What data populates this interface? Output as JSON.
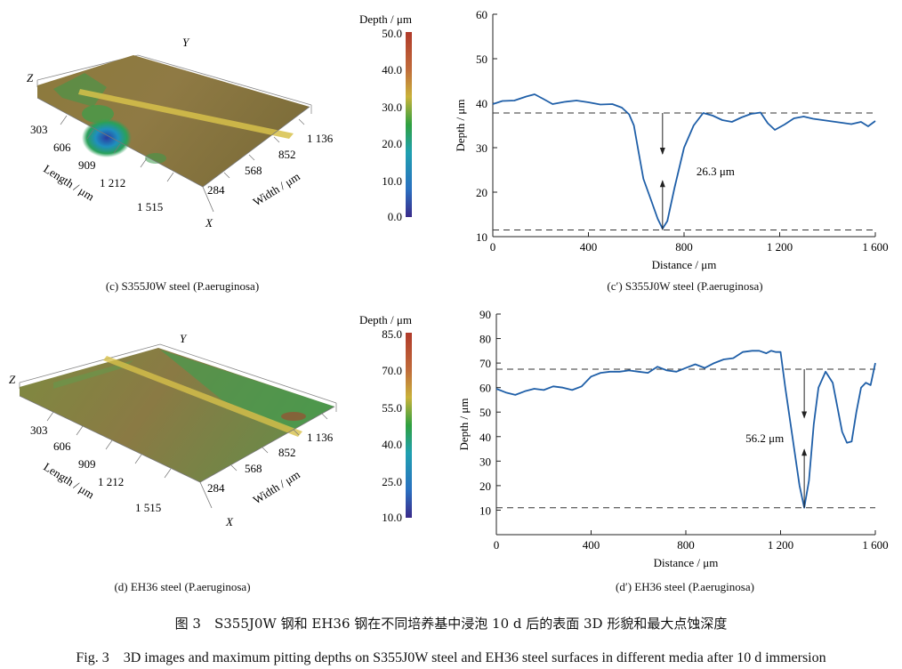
{
  "figure": {
    "caption_cn": "图 3　S355J0W 钢和 EH36 钢在不同培养基中浸泡 10 d 后的表面 3D 形貌和最大点蚀深度",
    "caption_en": "Fig. 3　3D images and maximum pitting depths on S355J0W steel and EH36 steel surfaces in different media after 10 d immersion"
  },
  "panels": {
    "c": {
      "caption": "(c) S355J0W steel (P.aeruginosa)",
      "axis_z": "Z",
      "axis_y": "Y",
      "axis_x": "X",
      "length_label": "Length / μm",
      "width_label": "Width / μm",
      "length_ticks": [
        "303",
        "606",
        "909",
        "1 212",
        "1 515"
      ],
      "width_ticks": [
        "284",
        "568",
        "852",
        "1 136"
      ],
      "colorbar_title": "Depth / μm",
      "colorbar_ticks": [
        "50.0",
        "40.0",
        "30.0",
        "20.0",
        "10.0",
        "0.0"
      ]
    },
    "d": {
      "caption": "(d) EH36 steel (P.aeruginosa)",
      "axis_z": "Z",
      "axis_y": "Y",
      "axis_x": "X",
      "length_label": "Length / μm",
      "width_label": "Width / μm",
      "length_ticks": [
        "303",
        "606",
        "909",
        "1 212",
        "1 515"
      ],
      "width_ticks": [
        "284",
        "568",
        "852",
        "1 136"
      ],
      "colorbar_title": "Depth / μm",
      "colorbar_ticks": [
        "85.0",
        "70.0",
        "55.0",
        "40.0",
        "25.0",
        "10.0"
      ]
    },
    "c_prime": {
      "caption": "(c′) S355J0W steel (P.aeruginosa)"
    },
    "d_prime": {
      "caption": "(d′) EH36 steel (P.aeruginosa)"
    }
  },
  "chart_data": [
    {
      "type": "line",
      "xlabel": "Distance / μm",
      "ylabel": "Depth / μm",
      "xlim": [
        0,
        1600
      ],
      "ylim": [
        10,
        60
      ],
      "xticks": [
        0,
        400,
        800,
        1200,
        1600
      ],
      "xtick_labels": [
        "0",
        "400",
        "800",
        "1 200",
        "1 600"
      ],
      "yticks": [
        10,
        20,
        30,
        40,
        50,
        60
      ],
      "color": "#1f5fa8",
      "x": [
        0,
        40,
        90,
        140,
        175,
        210,
        250,
        300,
        350,
        400,
        450,
        500,
        540,
        570,
        590,
        610,
        630,
        660,
        690,
        710,
        730,
        760,
        800,
        840,
        880,
        920,
        960,
        1000,
        1040,
        1080,
        1120,
        1150,
        1180,
        1220,
        1260,
        1300,
        1340,
        1380,
        1420,
        1460,
        1500,
        1540,
        1570,
        1600
      ],
      "y": [
        39.8,
        40.5,
        40.6,
        41.5,
        42.0,
        41.0,
        39.8,
        40.3,
        40.6,
        40.2,
        39.7,
        39.8,
        39.0,
        37.5,
        35.0,
        29.0,
        23.0,
        18.5,
        14.0,
        11.8,
        13.5,
        21.0,
        30.0,
        35.0,
        37.8,
        37.2,
        36.2,
        35.8,
        36.8,
        37.6,
        37.9,
        35.5,
        34.0,
        35.2,
        36.6,
        37.0,
        36.5,
        36.2,
        35.9,
        35.6,
        35.3,
        35.8,
        34.8,
        36.0
      ],
      "reference_lines": [
        37.8,
        11.5
      ],
      "annotation": "26.3 μm",
      "annotation_x": 710
    },
    {
      "type": "line",
      "xlabel": "Distance / μm",
      "ylabel": "Depth / μm",
      "xlim": [
        0,
        1600
      ],
      "ylim": [
        0,
        90
      ],
      "xticks": [
        0,
        400,
        800,
        1200,
        1600
      ],
      "xtick_labels": [
        "0",
        "400",
        "800",
        "1 200",
        "1 600"
      ],
      "yticks": [
        10,
        20,
        30,
        40,
        50,
        60,
        70,
        80,
        90
      ],
      "color": "#1f5fa8",
      "x": [
        0,
        40,
        80,
        120,
        160,
        200,
        240,
        280,
        320,
        360,
        400,
        440,
        480,
        520,
        560,
        600,
        640,
        680,
        720,
        760,
        800,
        840,
        880,
        920,
        960,
        1000,
        1040,
        1080,
        1110,
        1140,
        1160,
        1180,
        1200,
        1220,
        1250,
        1280,
        1300,
        1320,
        1340,
        1360,
        1390,
        1420,
        1440,
        1460,
        1480,
        1500,
        1520,
        1540,
        1560,
        1580,
        1600
      ],
      "y": [
        59.5,
        58.0,
        57.0,
        58.5,
        59.5,
        59.0,
        60.5,
        60.0,
        59.0,
        60.5,
        64.5,
        66.0,
        66.5,
        66.5,
        67.0,
        66.5,
        66.0,
        68.5,
        67.0,
        66.5,
        68.0,
        69.5,
        68.0,
        70.0,
        71.5,
        72.0,
        74.5,
        75.0,
        75.0,
        74.0,
        75.0,
        74.5,
        74.5,
        60.0,
        40.0,
        20.0,
        11.0,
        22.0,
        45.0,
        60.0,
        66.5,
        62.0,
        52.0,
        42.0,
        37.5,
        38.0,
        50.0,
        60.0,
        62.0,
        61.0,
        70.0
      ],
      "reference_lines": [
        67.5,
        11.0
      ],
      "annotation": "56.2 μm",
      "annotation_x": 1300
    }
  ]
}
